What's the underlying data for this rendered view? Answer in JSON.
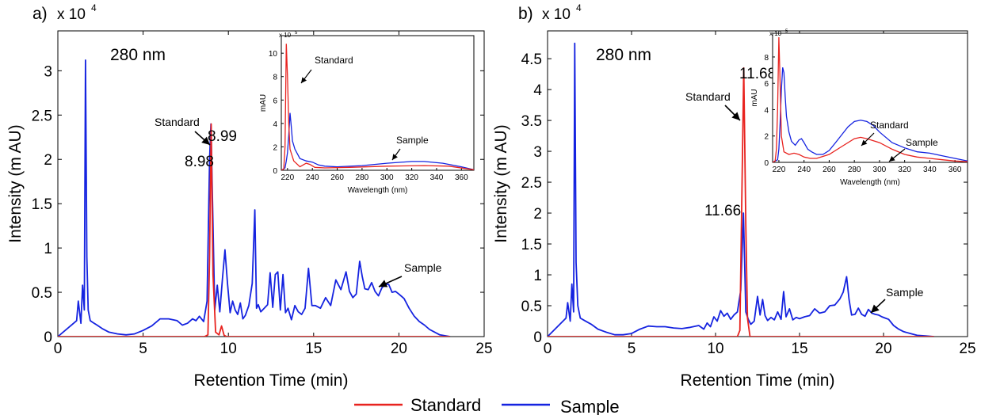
{
  "legend": {
    "standard": "Standard",
    "sample": "Sample"
  },
  "colors": {
    "standard": "#e8231f",
    "sample": "#1523e0"
  },
  "chart_data": [
    {
      "panel_label": "a)",
      "type": "line",
      "annotation": "280 nm",
      "exponent_label": "x 10",
      "exponent_power": "4",
      "xlabel": "Retention Time (min)",
      "ylabel": "Intensity (m AU)",
      "xlim": [
        0,
        25
      ],
      "ylim": [
        0,
        34500
      ],
      "xticks": [
        0,
        5,
        10,
        15,
        20,
        25
      ],
      "yticks": [
        0,
        0.5,
        1,
        1.5,
        2,
        2.5,
        3
      ],
      "peak_labels": {
        "standard": "8.99",
        "sample": "8.98"
      },
      "arrow_labels": {
        "standard": "Standard",
        "sample": "Sample"
      },
      "series": [
        {
          "name": "Standard",
          "x": [
            0,
            8.6,
            8.8,
            8.9,
            8.99,
            9.1,
            9.25,
            9.45,
            9.6,
            9.75,
            9.9,
            23
          ],
          "y": [
            0,
            0,
            200,
            9000,
            24000,
            7000,
            500,
            200,
            1200,
            150,
            0,
            0
          ]
        },
        {
          "name": "Sample",
          "x": [
            0,
            1.1,
            1.2,
            1.35,
            1.45,
            1.55,
            1.62,
            1.7,
            1.78,
            1.9,
            2.05,
            2.3,
            2.6,
            3,
            3.5,
            4,
            4.5,
            5,
            5.5,
            6,
            6.5,
            7,
            7.3,
            7.6,
            7.9,
            8.1,
            8.3,
            8.55,
            8.75,
            8.9,
            8.98,
            9.05,
            9.2,
            9.35,
            9.5,
            9.65,
            9.8,
            9.95,
            10.1,
            10.25,
            10.4,
            10.55,
            10.7,
            10.85,
            11,
            11.2,
            11.4,
            11.55,
            11.65,
            11.75,
            11.9,
            12.1,
            12.3,
            12.45,
            12.6,
            12.75,
            12.9,
            13.05,
            13.2,
            13.35,
            13.5,
            13.7,
            13.9,
            14.1,
            14.3,
            14.5,
            14.7,
            14.9,
            15.1,
            15.4,
            15.7,
            16,
            16.3,
            16.6,
            16.9,
            17.1,
            17.3,
            17.5,
            17.7,
            17.85,
            18,
            18.2,
            18.4,
            18.6,
            18.8,
            19,
            19.2,
            19.4,
            19.6,
            19.8,
            20,
            20.3,
            20.6,
            20.9,
            21.2,
            21.5,
            21.8,
            22.1,
            22.4,
            22.7,
            23
          ],
          "y": [
            0,
            1800,
            4000,
            1500,
            5800,
            3000,
            31200,
            9000,
            3000,
            1800,
            1600,
            1300,
            900,
            500,
            300,
            200,
            300,
            700,
            1200,
            2000,
            2000,
            1800,
            1300,
            1500,
            2000,
            1800,
            2300,
            1700,
            4000,
            20000,
            24000,
            17000,
            3000,
            5800,
            2800,
            6500,
            9800,
            6000,
            2700,
            4000,
            3000,
            2500,
            3800,
            2000,
            2400,
            3500,
            6000,
            14300,
            3200,
            3600,
            2800,
            3200,
            3600,
            7200,
            3300,
            7000,
            7300,
            3000,
            7000,
            2700,
            3200,
            1900,
            3500,
            2800,
            2500,
            3200,
            7700,
            3500,
            3500,
            3200,
            4400,
            3500,
            6400,
            5300,
            7300,
            5100,
            4400,
            4800,
            8500,
            6800,
            5400,
            5300,
            6100,
            5100,
            4600,
            5500,
            5900,
            5900,
            5000,
            5100,
            4800,
            4300,
            3200,
            2300,
            1700,
            1300,
            800,
            500,
            200,
            100,
            0
          ]
        }
      ],
      "inset": {
        "xlabel": "Wavelength (nm)",
        "ylabel": "mAU",
        "exponent_label": "x 10",
        "exponent_power": "5",
        "xlim": [
          215,
          370
        ],
        "ylim": [
          0,
          11.5
        ],
        "xticks": [
          220,
          240,
          260,
          280,
          300,
          320,
          340,
          360
        ],
        "yticks": [
          0,
          2,
          4,
          6,
          8,
          10
        ],
        "arrow_labels": {
          "standard": "Standard",
          "sample": "Sample"
        },
        "series": [
          {
            "name": "Standard",
            "x": [
              215,
              217,
              218,
              219,
              220,
              221,
              222,
              225,
              230,
              235,
              238,
              242,
              250,
              270,
              300,
              330,
              350,
              370
            ],
            "y": [
              0,
              0.1,
              2,
              10.8,
              8,
              4,
              1.8,
              0.8,
              0.3,
              0.6,
              0.5,
              0.25,
              0.2,
              0.25,
              0.35,
              0.4,
              0.35,
              0.05
            ]
          },
          {
            "name": "Sample",
            "x": [
              215,
              218,
              219,
              220,
              221,
              222,
              223,
              224,
              226,
              230,
              235,
              240,
              245,
              250,
              260,
              280,
              300,
              320,
              330,
              345,
              360,
              370
            ],
            "y": [
              0,
              0.2,
              0.8,
              1.5,
              3,
              4.9,
              3.8,
              2.5,
              1.8,
              1,
              0.8,
              0.7,
              0.45,
              0.35,
              0.3,
              0.4,
              0.6,
              0.75,
              0.75,
              0.6,
              0.3,
              0.05
            ]
          }
        ]
      }
    },
    {
      "panel_label": "b)",
      "type": "line",
      "annotation": "280 nm",
      "exponent_label": "x 10",
      "exponent_power": "4",
      "xlabel": "Retention Time (min)",
      "ylabel": "Intensity (m AU)",
      "xlim": [
        0,
        25
      ],
      "ylim": [
        0,
        49500
      ],
      "xticks": [
        0,
        5,
        10,
        15,
        20,
        25
      ],
      "yticks": [
        0,
        0.5,
        1,
        1.5,
        2,
        2.5,
        3,
        3.5,
        4,
        4.5
      ],
      "peak_labels": {
        "standard": "11.68",
        "sample": "11.66"
      },
      "arrow_labels": {
        "standard": "Standard",
        "sample": "Sample"
      },
      "series": [
        {
          "name": "Standard",
          "x": [
            0,
            11.3,
            11.45,
            11.55,
            11.68,
            11.8,
            11.9,
            12.05,
            23
          ],
          "y": [
            0,
            0,
            1000,
            20000,
            43500,
            18000,
            3000,
            0,
            0
          ]
        },
        {
          "name": "Sample",
          "x": [
            0,
            1.1,
            1.2,
            1.35,
            1.45,
            1.55,
            1.62,
            1.7,
            1.8,
            1.95,
            2.2,
            2.6,
            3,
            3.5,
            4,
            4.5,
            5,
            5.5,
            6,
            6.5,
            7,
            7.5,
            8,
            8.5,
            9,
            9.3,
            9.5,
            9.7,
            9.9,
            10.1,
            10.3,
            10.5,
            10.7,
            10.9,
            11.1,
            11.3,
            11.5,
            11.66,
            11.8,
            11.95,
            12.1,
            12.3,
            12.5,
            12.65,
            12.8,
            12.95,
            13.1,
            13.3,
            13.5,
            13.7,
            13.9,
            14.05,
            14.2,
            14.4,
            14.6,
            14.8,
            15,
            15.3,
            15.6,
            15.9,
            16.2,
            16.5,
            16.8,
            17.1,
            17.4,
            17.6,
            17.8,
            17.95,
            18.1,
            18.3,
            18.5,
            18.7,
            18.9,
            19.1,
            19.3,
            19.5,
            19.7,
            19.9,
            20.1,
            20.3,
            20.6,
            20.9,
            21.2,
            21.6,
            22,
            22.5,
            23
          ],
          "y": [
            0,
            3000,
            5500,
            2500,
            8500,
            4000,
            47500,
            12000,
            5000,
            3000,
            2600,
            2000,
            1200,
            700,
            300,
            300,
            500,
            1200,
            1700,
            1600,
            1600,
            1400,
            1300,
            1500,
            1800,
            1200,
            2200,
            1600,
            3200,
            2500,
            4200,
            3300,
            3800,
            2800,
            3500,
            4000,
            7500,
            20000,
            4000,
            2800,
            2000,
            2500,
            6500,
            3500,
            6000,
            3400,
            2600,
            3100,
            2700,
            4000,
            2800,
            7300,
            3200,
            4500,
            2700,
            3100,
            2900,
            3200,
            3400,
            4500,
            3800,
            4000,
            5000,
            5100,
            6100,
            7200,
            9700,
            6000,
            3500,
            3600,
            4600,
            3600,
            3300,
            4400,
            3800,
            3600,
            3500,
            3200,
            3000,
            2800,
            1800,
            1200,
            800,
            500,
            200,
            100,
            0
          ]
        }
      ],
      "inset": {
        "xlabel": "Wavelength (nm)",
        "ylabel": "mAU",
        "exponent_label": "x 10",
        "exponent_power": "5",
        "xlim": [
          215,
          370
        ],
        "ylim": [
          0,
          9.8
        ],
        "xticks": [
          220,
          240,
          260,
          280,
          300,
          320,
          340,
          360
        ],
        "yticks": [
          0,
          2,
          4,
          6,
          8
        ],
        "arrow_labels": {
          "standard": "Standard",
          "sample": "Sample"
        },
        "series": [
          {
            "name": "Standard",
            "x": [
              215,
              217,
              218,
              219,
              220,
              221,
              222,
              224,
              228,
              232,
              236,
              240,
              245,
              250,
              260,
              270,
              280,
              285,
              290,
              300,
              310,
              320,
              330,
              340,
              350,
              360,
              370
            ],
            "y": [
              0,
              0.1,
              1,
              4,
              9.5,
              6,
              2,
              0.8,
              0.6,
              0.7,
              0.6,
              0.4,
              0.3,
              0.3,
              0.6,
              1.2,
              1.8,
              1.9,
              1.8,
              1.5,
              1,
              0.6,
              0.4,
              0.3,
              0.2,
              0.1,
              0.05
            ]
          },
          {
            "name": "Sample",
            "x": [
              215,
              219,
              220,
              221,
              222,
              223,
              224,
              225,
              226,
              228,
              230,
              233,
              236,
              238,
              240,
              243,
              246,
              250,
              255,
              260,
              265,
              270,
              275,
              280,
              285,
              290,
              295,
              300,
              310,
              320,
              330,
              340,
              350,
              360,
              370
            ],
            "y": [
              0,
              0.2,
              1,
              3,
              5.5,
              7.2,
              6.8,
              5,
              3.5,
              2.3,
              1.6,
              1.3,
              1.7,
              1.8,
              1.5,
              1,
              0.8,
              0.6,
              0.6,
              0.9,
              1.5,
              2.1,
              2.7,
              3.1,
              3.2,
              3.1,
              2.8,
              2.3,
              1.5,
              1.1,
              0.8,
              0.7,
              0.5,
              0.3,
              0.1
            ]
          }
        ]
      }
    }
  ]
}
